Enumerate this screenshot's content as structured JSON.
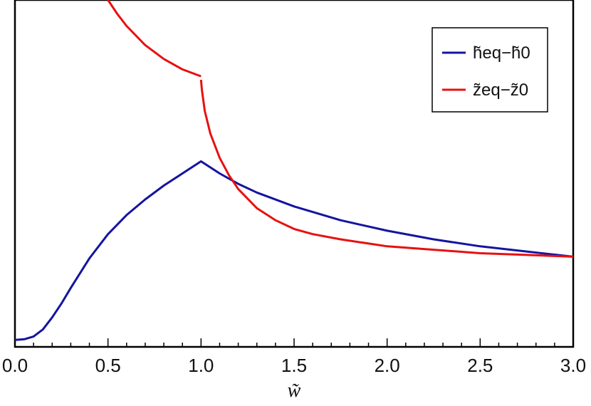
{
  "chart_data": {
    "type": "line",
    "xlabel": "w̃",
    "ylabel": "",
    "xlim": [
      0,
      3
    ],
    "ylim": [
      0,
      1
    ],
    "x_ticks": [
      "0.0",
      "0.5",
      "1.0",
      "1.5",
      "2.0",
      "2.5",
      "3.0"
    ],
    "grid": false,
    "legend_position": "top-right",
    "series": [
      {
        "name": "h̃eq−h̃0",
        "color": "#1414a0",
        "x": [
          0.0,
          0.05,
          0.1,
          0.15,
          0.2,
          0.25,
          0.3,
          0.4,
          0.5,
          0.6,
          0.7,
          0.8,
          0.9,
          1.0,
          1.1,
          1.2,
          1.3,
          1.5,
          1.75,
          2.0,
          2.25,
          2.5,
          2.75,
          3.0
        ],
        "y": [
          0.02,
          0.022,
          0.03,
          0.05,
          0.085,
          0.125,
          0.17,
          0.255,
          0.325,
          0.38,
          0.425,
          0.465,
          0.5,
          0.535,
          0.5,
          0.47,
          0.445,
          0.405,
          0.365,
          0.335,
          0.31,
          0.29,
          0.275,
          0.26
        ]
      },
      {
        "name": "z̃eq−z̃0",
        "color": "#e81010",
        "segments": [
          {
            "x": [
              0.5,
              0.55,
              0.6,
              0.7,
              0.8,
              0.9,
              1.0
            ],
            "y": [
              1.0,
              0.96,
              0.925,
              0.87,
              0.83,
              0.8,
              0.78
            ]
          },
          {
            "x": [
              1.0,
              1.005,
              1.02,
              1.05,
              1.1,
              1.15,
              1.2,
              1.3,
              1.4,
              1.5,
              1.6,
              1.75,
              2.0,
              2.25,
              2.5,
              2.75,
              3.0
            ],
            "y": [
              0.77,
              0.74,
              0.68,
              0.615,
              0.545,
              0.495,
              0.455,
              0.4,
              0.365,
              0.34,
              0.325,
              0.31,
              0.29,
              0.28,
              0.27,
              0.265,
              0.26
            ]
          }
        ]
      }
    ]
  }
}
